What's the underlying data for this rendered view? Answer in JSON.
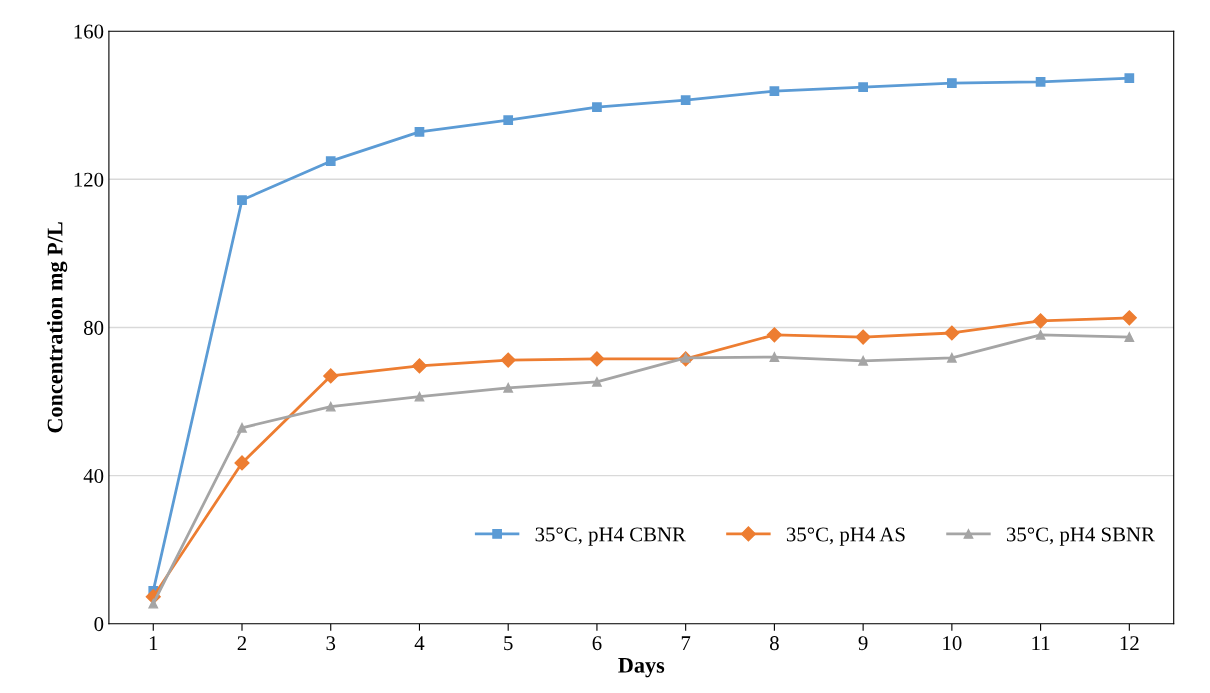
{
  "chart_data": {
    "type": "line",
    "xlabel": "Days",
    "ylabel": "Concentration mg P/L",
    "categories": [
      "1",
      "2",
      "3",
      "4",
      "5",
      "6",
      "7",
      "8",
      "9",
      "10",
      "11",
      "12"
    ],
    "series": [
      {
        "name": "35°C, pH4 CBNR",
        "color": "#5b9bd5",
        "marker": "square",
        "values": [
          8.9,
          114.4,
          124.9,
          132.8,
          136,
          139.5,
          141.4,
          143.8,
          144.9,
          146,
          146.3,
          147.3
        ]
      },
      {
        "name": "35°C, pH4 AS",
        "color": "#ed7d31",
        "marker": "diamond",
        "values": [
          7.3,
          43.4,
          66.9,
          69.6,
          71.2,
          71.5,
          71.5,
          78,
          77.4,
          78.5,
          81.8,
          82.6
        ]
      },
      {
        "name": "35°C, pH4 SBNR",
        "color": "#a5a5a5",
        "marker": "triangle",
        "values": [
          5.4,
          52.9,
          58.6,
          61.3,
          63.7,
          65.3,
          71.8,
          72,
          71,
          71.8,
          78,
          77.4
        ]
      }
    ],
    "ylim": [
      0,
      160
    ],
    "yticks": [
      0,
      40,
      80,
      120,
      160
    ],
    "grid": "y",
    "legend": "bottom right"
  }
}
